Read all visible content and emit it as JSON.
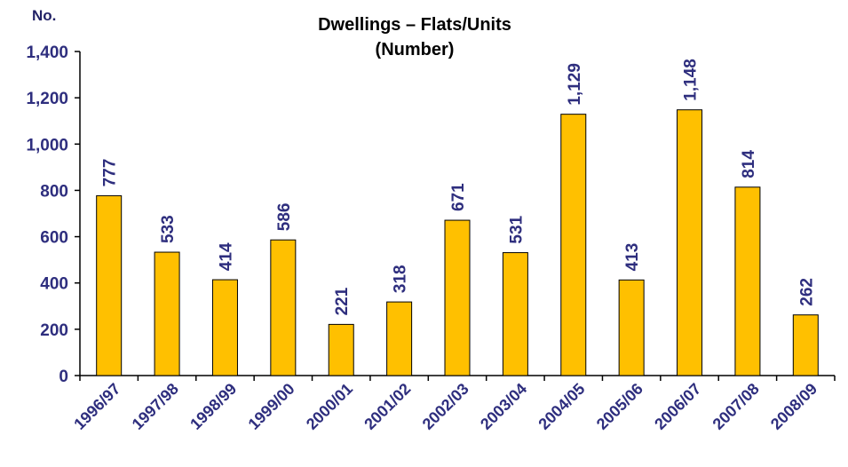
{
  "chart_data": {
    "type": "bar",
    "title": "Dwellings – Flats/Units",
    "subtitle": "(Number)",
    "unit_label": "No.",
    "categories": [
      "1996/97",
      "1997/98",
      "1998/99",
      "1999/00",
      "2000/01",
      "2001/02",
      "2002/03",
      "2003/04",
      "2004/05",
      "2005/06",
      "2006/07",
      "2007/08",
      "2008/09"
    ],
    "values": [
      777,
      533,
      414,
      586,
      221,
      318,
      671,
      531,
      1129,
      413,
      1148,
      814,
      262
    ],
    "data_labels": [
      "777",
      "533",
      "414",
      "586",
      "221",
      "318",
      "671",
      "531",
      "1,129",
      "413",
      "1,148",
      "814",
      "262"
    ],
    "ylim": [
      0,
      1400
    ],
    "yticks": [
      0,
      200,
      400,
      600,
      800,
      1000,
      1200,
      1400
    ],
    "ytick_labels": [
      "0",
      "200",
      "400",
      "600",
      "800",
      "1,000",
      "1,200",
      "1,400"
    ],
    "grid": false,
    "legend": "none",
    "colors": {
      "bar": "#FFC000",
      "bar_edge": "#000000",
      "text": "#2e2e7e",
      "axis": "#000000"
    }
  }
}
